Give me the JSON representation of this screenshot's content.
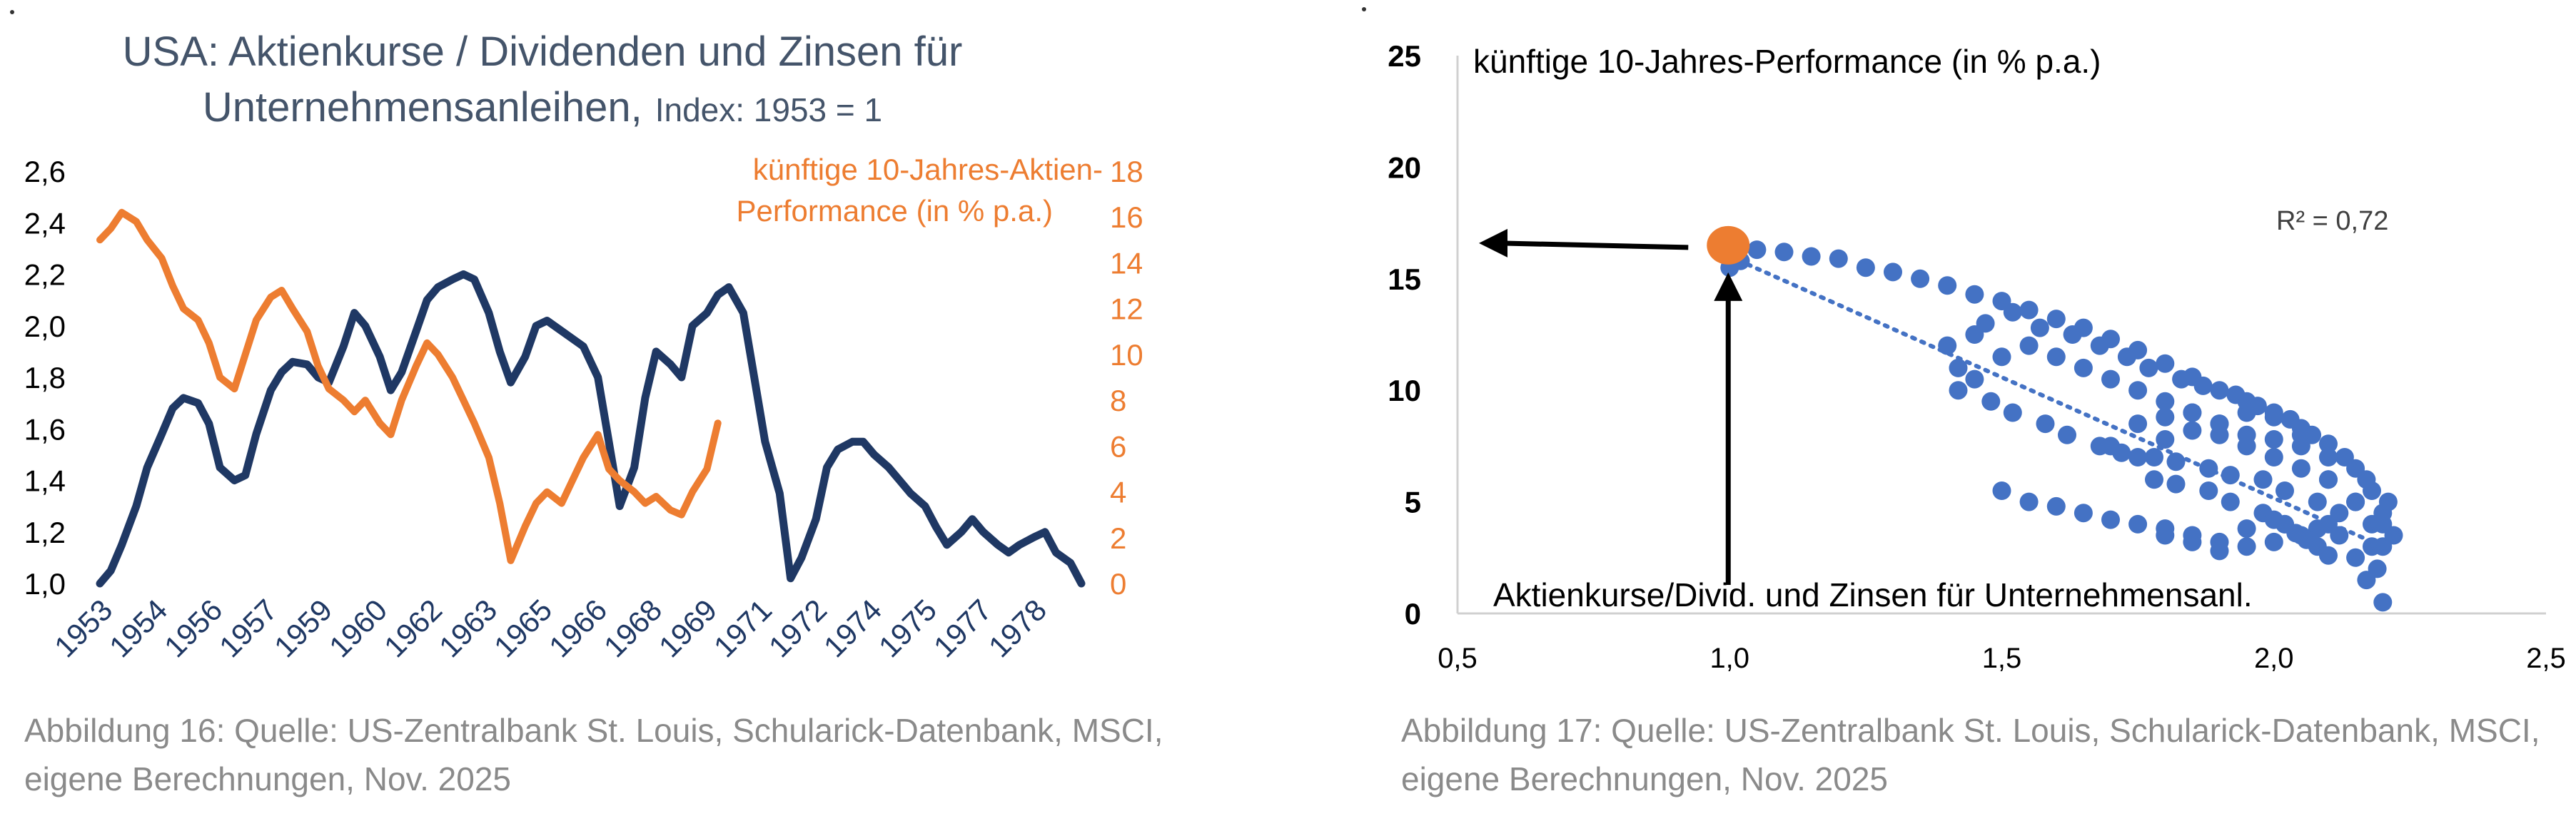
{
  "colors": {
    "navy": "#1f3864",
    "title": "#44546a",
    "orange": "#ed7d31",
    "blue": "#4472c4",
    "grey_text": "#8a8a8a",
    "axis": "#d0d0d0",
    "black": "#000000"
  },
  "chart_data": [
    {
      "type": "line",
      "title": "USA: Aktienkurse / Dividenden und Zinsen für",
      "title_line2": "Unternehmensanleihen,",
      "subtitle": "Index: 1953 = 1",
      "x_tick_labels": [
        "1953",
        "1954",
        "1956",
        "1957",
        "1959",
        "1960",
        "1962",
        "1963",
        "1965",
        "1966",
        "1968",
        "1969",
        "1971",
        "1972",
        "1974",
        "1975",
        "1977",
        "1978"
      ],
      "x_range": [
        1953,
        1980
      ],
      "y_left_ticks": [
        "1,0",
        "1,2",
        "1,4",
        "1,6",
        "1,8",
        "2,0",
        "2,2",
        "2,4",
        "2,6"
      ],
      "y_left_range": [
        1.0,
        2.6
      ],
      "y_right_ticks": [
        "0",
        "2",
        "4",
        "6",
        "8",
        "10",
        "12",
        "14",
        "16",
        "18"
      ],
      "y_right_range": [
        0,
        18
      ],
      "series": [
        {
          "name": "",
          "axis": "left",
          "color": "#1f3864",
          "x": [
            1953.0,
            1953.3,
            1953.6,
            1954.0,
            1954.3,
            1954.7,
            1955.0,
            1955.3,
            1955.7,
            1956.0,
            1956.3,
            1956.7,
            1957.0,
            1957.3,
            1957.7,
            1958.0,
            1958.3,
            1958.7,
            1959.0,
            1959.3,
            1959.7,
            1960.0,
            1960.3,
            1960.7,
            1961.0,
            1961.3,
            1961.7,
            1962.0,
            1962.3,
            1962.7,
            1963.0,
            1963.3,
            1963.7,
            1964.0,
            1964.3,
            1964.7,
            1965.0,
            1965.3,
            1965.7,
            1966.0,
            1966.3,
            1966.7,
            1967.0,
            1967.3,
            1967.7,
            1968.0,
            1968.3,
            1968.7,
            1969.0,
            1969.3,
            1969.7,
            1970.0,
            1970.3,
            1970.7,
            1971.0,
            1971.3,
            1971.7,
            1972.0,
            1972.3,
            1972.7,
            1973.0,
            1973.3,
            1973.7,
            1974.0,
            1974.3,
            1974.7,
            1975.0,
            1975.3,
            1975.7,
            1976.0,
            1976.3,
            1976.7,
            1977.0,
            1977.3,
            1977.7,
            1978.0,
            1978.3,
            1978.7,
            1979.0,
            1979.3,
            1979.7,
            1980.0
          ],
          "values": [
            1.0,
            1.05,
            1.15,
            1.3,
            1.45,
            1.58,
            1.68,
            1.72,
            1.7,
            1.62,
            1.45,
            1.4,
            1.42,
            1.58,
            1.75,
            1.82,
            1.86,
            1.85,
            1.8,
            1.78,
            1.92,
            2.05,
            2.0,
            1.88,
            1.75,
            1.82,
            1.98,
            2.1,
            2.15,
            2.18,
            2.2,
            2.18,
            2.05,
            1.9,
            1.78,
            1.88,
            2.0,
            2.02,
            1.98,
            1.95,
            1.92,
            1.8,
            1.55,
            1.3,
            1.45,
            1.72,
            1.9,
            1.85,
            1.8,
            2.0,
            2.05,
            2.12,
            2.15,
            2.05,
            1.8,
            1.55,
            1.35,
            1.02,
            1.1,
            1.25,
            1.45,
            1.52,
            1.55,
            1.55,
            1.5,
            1.45,
            1.4,
            1.35,
            1.3,
            1.22,
            1.15,
            1.2,
            1.25,
            1.2,
            1.15,
            1.12,
            1.15,
            1.18,
            1.2,
            1.12,
            1.08,
            1.0
          ]
        },
        {
          "name": "künftige 10-Jahres-Aktien-Performance (in % p.a.)",
          "axis": "right",
          "color": "#ed7d31",
          "x": [
            1953.0,
            1953.3,
            1953.6,
            1954.0,
            1954.3,
            1954.7,
            1955.0,
            1955.3,
            1955.7,
            1956.0,
            1956.3,
            1956.7,
            1957.0,
            1957.3,
            1957.7,
            1958.0,
            1958.3,
            1958.7,
            1959.0,
            1959.3,
            1959.7,
            1960.0,
            1960.3,
            1960.7,
            1961.0,
            1961.3,
            1961.7,
            1962.0,
            1962.3,
            1962.7,
            1963.0,
            1963.3,
            1963.7,
            1964.0,
            1964.3,
            1964.7,
            1965.0,
            1965.3,
            1965.7,
            1966.0,
            1966.3,
            1966.7,
            1967.0,
            1967.3,
            1967.7,
            1968.0,
            1968.3,
            1968.7,
            1969.0,
            1969.3,
            1969.7,
            1970.0
          ],
          "values": [
            15.0,
            15.5,
            16.2,
            15.8,
            15.0,
            14.2,
            13.0,
            12.0,
            11.5,
            10.5,
            9.0,
            8.5,
            10.0,
            11.5,
            12.5,
            12.8,
            12.0,
            11.0,
            9.5,
            8.5,
            8.0,
            7.5,
            8.0,
            7.0,
            6.5,
            8.0,
            9.5,
            10.5,
            10.0,
            9.0,
            8.0,
            7.0,
            5.5,
            3.5,
            1.0,
            2.5,
            3.5,
            4.0,
            3.5,
            4.5,
            5.5,
            6.5,
            5.0,
            4.5,
            4.0,
            3.5,
            3.8,
            3.2,
            3.0,
            4.0,
            5.0,
            7.0
          ]
        }
      ],
      "legend": "top-right",
      "grid": false
    },
    {
      "type": "scatter",
      "title": "künftige 10-Jahres-Performance (in % p.a.)",
      "xlabel": "Aktienkurse/Divid. und Zinsen für Unternehmensanl.",
      "annotation": "R² = 0,72",
      "x_ticks": [
        "0,5",
        "1,0",
        "1,5",
        "2,0",
        "2,5"
      ],
      "y_ticks": [
        "0",
        "5",
        "10",
        "15",
        "20",
        "25"
      ],
      "xlim": [
        0.5,
        2.5
      ],
      "ylim": [
        0,
        25
      ],
      "trendline": {
        "x": [
          1.0,
          2.2
        ],
        "y": [
          16.0,
          3.0
        ]
      },
      "highlight": {
        "x": 1.0,
        "y": 16.5
      },
      "points": {
        "x": [
          1.0,
          1.02,
          1.05,
          1.1,
          1.15,
          1.2,
          1.25,
          1.3,
          1.35,
          1.4,
          1.45,
          1.5,
          1.55,
          1.6,
          1.65,
          1.7,
          1.75,
          1.8,
          1.85,
          1.9,
          1.95,
          2.0,
          2.05,
          2.1,
          2.15,
          2.18,
          2.2,
          2.22,
          1.4,
          1.42,
          1.45,
          1.5,
          1.55,
          1.6,
          1.65,
          1.7,
          1.75,
          1.8,
          1.85,
          1.9,
          1.95,
          2.0,
          2.05,
          2.1,
          2.15,
          2.2,
          1.48,
          1.52,
          1.58,
          1.62,
          1.68,
          1.72,
          1.78,
          1.82,
          1.88,
          1.92,
          1.98,
          2.02,
          2.08,
          2.12,
          2.18,
          1.5,
          1.55,
          1.6,
          1.65,
          1.7,
          1.75,
          1.8,
          1.85,
          1.9,
          1.95,
          2.0,
          2.05,
          2.1,
          2.15,
          1.75,
          1.8,
          1.85,
          1.9,
          1.95,
          2.0,
          2.05,
          2.1,
          2.15,
          2.2,
          1.78,
          1.82,
          1.88,
          1.92,
          1.98,
          2.02,
          2.08,
          2.12,
          2.18,
          1.7,
          1.75,
          1.8,
          1.85,
          1.9,
          1.95,
          2.0,
          2.05,
          2.1,
          1.42,
          1.45,
          1.47,
          1.52,
          1.57,
          1.63,
          1.68,
          1.73,
          1.77,
          1.83,
          1.87,
          1.93,
          1.97,
          2.03,
          2.07,
          2.13,
          2.17,
          2.21,
          2.17,
          2.19,
          2.2,
          1.8,
          1.85,
          1.9,
          1.95,
          2.0,
          2.02,
          2.04,
          2.06,
          2.08,
          2.1
        ],
        "y": [
          15.5,
          15.8,
          16.3,
          16.2,
          16.0,
          15.9,
          15.5,
          15.3,
          15.0,
          14.7,
          14.3,
          14.0,
          13.6,
          13.2,
          12.8,
          12.3,
          11.8,
          11.2,
          10.6,
          10.0,
          9.5,
          9.0,
          8.3,
          7.6,
          6.5,
          5.5,
          4.5,
          3.5,
          12.0,
          11.0,
          10.5,
          11.5,
          12.0,
          11.5,
          11.0,
          10.5,
          10.0,
          9.5,
          9.0,
          8.5,
          8.0,
          7.8,
          7.5,
          6.0,
          5.0,
          4.0,
          9.5,
          9.0,
          8.5,
          8.0,
          7.5,
          7.2,
          7.0,
          6.8,
          6.5,
          6.2,
          6.0,
          5.5,
          5.0,
          4.5,
          4.0,
          5.5,
          5.0,
          4.8,
          4.5,
          4.2,
          4.0,
          3.8,
          3.5,
          3.2,
          3.0,
          3.2,
          3.5,
          4.0,
          2.5,
          8.5,
          8.8,
          9.0,
          8.0,
          7.5,
          7.0,
          6.5,
          6.0,
          5.0,
          3.0,
          6.0,
          5.8,
          5.5,
          5.0,
          4.5,
          4.0,
          3.8,
          3.5,
          3.0,
          7.5,
          7.0,
          7.8,
          8.2,
          8.5,
          9.0,
          8.8,
          8.0,
          7.0,
          10.0,
          12.5,
          13.0,
          13.5,
          12.8,
          12.5,
          12.0,
          11.5,
          11.0,
          10.5,
          10.2,
          9.8,
          9.3,
          8.7,
          8.0,
          7.0,
          6.0,
          5.0,
          1.5,
          2.0,
          0.5,
          3.5,
          3.2,
          2.8,
          3.8,
          4.2,
          4.0,
          3.6,
          3.3,
          3.0,
          2.6
        ]
      }
    }
  ],
  "captions": {
    "left_line1": "Abbildung 16: Quelle: US-Zentralbank St. Louis, Schularick-Datenbank, MSCI,",
    "left_line2": "eigene Berechnungen, Nov. 2025",
    "right_line1": "Abbildung 17: Quelle: US-Zentralbank St. Louis, Schularick-Datenbank, MSCI,",
    "right_line2": "eigene   Berechnungen, Nov. 2025"
  }
}
